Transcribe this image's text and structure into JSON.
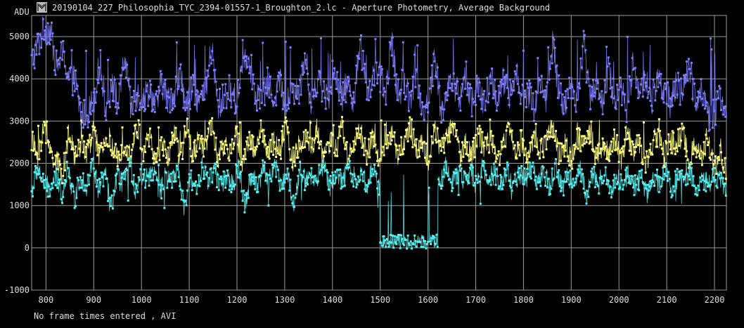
{
  "window": {
    "title": "20190104_227_Philosophia_TYC_2394-01557-1_Broughton_2.lc - Aperture Photometry, Average Background",
    "status": "No frame times entered , AVI"
  },
  "colors": {
    "background": "#000000",
    "grid": "#9a9a9a",
    "text": "#dddddd",
    "target": "#56f2f2",
    "comparison_1": "#7f7fff",
    "comparison_2": "#ffff80"
  },
  "chart_data": {
    "type": "line",
    "ylabel": "ADU",
    "xlim": [
      770,
      2225
    ],
    "ylim": [
      -1000,
      5500
    ],
    "x_ticks": [
      800,
      900,
      1000,
      1100,
      1200,
      1300,
      1400,
      1500,
      1600,
      1700,
      1800,
      1900,
      2000,
      2100,
      2200
    ],
    "y_ticks": [
      -1000,
      0,
      1000,
      2000,
      3000,
      4000,
      5000
    ],
    "grid": true,
    "markers": true,
    "frame_start": 770,
    "frame_end": 2225,
    "series": [
      {
        "color": "#7f7fff",
        "baseline": 3600,
        "scatter": 380,
        "spikes": [
          4400,
          5000
        ],
        "samples": [
          4400,
          4800,
          5200,
          5150,
          4300,
          4600,
          4050,
          3950,
          3100,
          3200,
          3500,
          4400,
          3300,
          3900,
          3350,
          4550,
          3250,
          3650,
          3500,
          3800,
          3300,
          3950,
          3450,
          3700,
          4050,
          3300,
          3800,
          3450,
          3600,
          4750,
          3350,
          3550,
          3750,
          3450,
          4500,
          4550,
          3700,
          3450,
          3900,
          3550,
          3950,
          3300,
          3800,
          3600,
          4500,
          3450,
          3950,
          3750,
          3350,
          4200,
          3550,
          3900,
          3500,
          4850,
          3650,
          4000,
          4200,
          3500,
          4950,
          3650,
          3900,
          3550,
          4000,
          3300,
          3450,
          4550,
          3200,
          3700,
          3950,
          3500,
          4100,
          3450,
          3800,
          3350,
          4050,
          3550,
          3900,
          3600,
          4250,
          3450,
          3750,
          3300,
          3900,
          3550,
          4800,
          3700,
          3400,
          3850,
          3500,
          4850,
          3600,
          3900,
          3450,
          4150,
          3550,
          3800,
          3300,
          4400,
          3650,
          3950,
          3500,
          4100,
          3750,
          3400,
          3900,
          3600,
          4350,
          3500,
          3800,
          3100,
          3200,
          3550,
          3300
        ]
      },
      {
        "color": "#ffff80",
        "baseline": 2250,
        "scatter": 290,
        "spikes": [
          2700,
          3050
        ],
        "samples": [
          2550,
          2150,
          2900,
          2250,
          2050,
          1750,
          2700,
          2150,
          2500,
          2250,
          2800,
          2100,
          2600,
          2350,
          2050,
          2500,
          2200,
          2900,
          2300,
          2650,
          2050,
          2400,
          2150,
          2750,
          2050,
          3000,
          2200,
          2600,
          2350,
          2900,
          2100,
          2450,
          2200,
          2750,
          2000,
          2600,
          2300,
          2850,
          2150,
          2500,
          2250,
          2950,
          2050,
          2400,
          2650,
          2250,
          2800,
          2100,
          2500,
          2300,
          2900,
          2150,
          2450,
          2750,
          2200,
          2600,
          1950,
          2450,
          2700,
          2150,
          2550,
          2850,
          2300,
          2500,
          2100,
          2800,
          2350,
          2600,
          2950,
          2200,
          2500,
          2150,
          2750,
          2350,
          2600,
          2000,
          2450,
          2850,
          2250,
          2550,
          2100,
          2700,
          2300,
          2500,
          2900,
          2200,
          2450,
          2050,
          2650,
          2350,
          2800,
          2100,
          2450,
          2250,
          2600,
          2050,
          2750,
          2300,
          2500,
          1950,
          2450,
          2650,
          2150,
          2550,
          2300,
          2750,
          2100,
          2400,
          2200,
          2600,
          1850,
          2350,
          1700
        ]
      },
      {
        "color": "#56f2f2",
        "baseline": 1750,
        "scatter": 260,
        "spikes": [
          900,
          2100
        ],
        "eclipse": {
          "start": 1500,
          "end": 1620,
          "depth": 150,
          "scatter": 170
        },
        "samples": [
          1350,
          1900,
          1500,
          1400,
          1650,
          1300,
          1900,
          1100,
          1700,
          1450,
          2000,
          1350,
          1800,
          900,
          1650,
          1550,
          2000,
          1400,
          1750,
          1600,
          1850,
          1300,
          1700,
          1500,
          1950,
          850,
          1650,
          1450,
          1900,
          1600,
          1800,
          1500,
          1700,
          1450,
          1950,
          1000,
          1750,
          1500,
          1850,
          1600,
          2000,
          1450,
          1750,
          1000,
          1850,
          1550,
          1750,
          1650,
          1950,
          1450,
          1800,
          1550,
          1900,
          1650,
          1750,
          1500,
          1950,
          1400,
          1850,
          1650,
          2000,
          1500,
          1800,
          1600,
          1900,
          1550,
          1750,
          1450,
          1950,
          1550,
          1700,
          1600,
          1800,
          1500,
          1900,
          1650,
          1750,
          1550,
          1850,
          1450,
          1750,
          1600,
          1900,
          1500,
          1800,
          1450,
          1950,
          1400,
          1700,
          1550,
          1850,
          1250,
          1750,
          1500,
          1900,
          1350,
          1650,
          1550,
          1800,
          1450,
          1700,
          1200,
          1750,
          1500,
          1850,
          1400,
          1650,
          1550,
          1800,
          1400,
          1650,
          1500,
          1700,
          1550,
          1400
        ]
      }
    ]
  }
}
